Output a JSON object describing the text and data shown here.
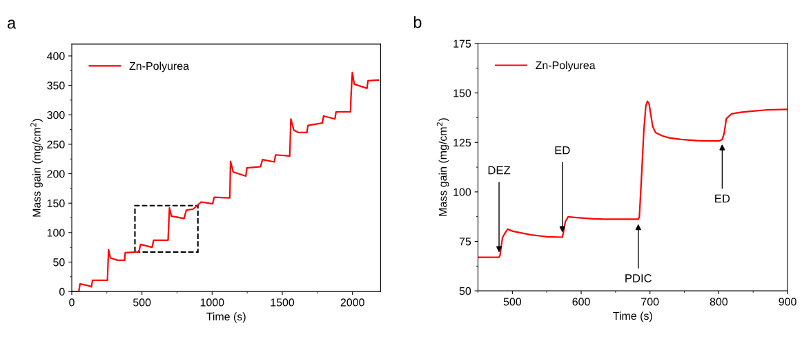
{
  "chart_data": [
    {
      "type": "line",
      "title": "a",
      "xlabel": "Time (s)",
      "ylabel": "Mass gain (mg/cm$^{2}$)",
      "xlim": [
        0,
        2200
      ],
      "xticks": [
        0,
        500,
        1000,
        1500,
        2000
      ],
      "ylim": [
        0,
        420
      ],
      "yticks": [
        0,
        50,
        100,
        150,
        200,
        250,
        300,
        350,
        400
      ],
      "legend": "top left",
      "grid": false,
      "series": [
        {
          "name": "Zn-Polyurea",
          "color": "#ff0000",
          "x": [
            5,
            50,
            59,
            116,
            140,
            148,
            254,
            262,
            275,
            327,
            376,
            381,
            474,
            482,
            490,
            572,
            583,
            686,
            696,
            710,
            800,
            816,
            865,
            922,
            1004,
            1015,
            1126,
            1131,
            1150,
            1240,
            1248,
            1345,
            1359,
            1443,
            1452,
            1553,
            1561,
            1582,
            1614,
            1675,
            1683,
            1785,
            1794,
            1875,
            1883,
            1986,
            1989,
            1999,
            2013,
            2103,
            2111,
            2184
          ],
          "values": [
            0,
            0,
            13,
            10,
            8,
            19,
            19,
            71,
            57,
            53,
            53,
            66,
            67,
            71,
            80,
            75,
            87,
            87,
            142,
            128,
            124,
            138,
            140,
            152,
            149,
            160,
            159,
            221,
            203,
            196,
            210,
            212,
            224,
            220,
            232,
            230,
            293,
            274,
            270,
            270,
            282,
            286,
            298,
            293,
            305,
            305,
            329,
            372,
            352,
            345,
            358,
            359
          ]
        }
      ]
    },
    {
      "type": "line",
      "title": "b",
      "xlabel": "Time (s)",
      "ylabel": "Mass gain (mg/cm$^{2}$)",
      "xlim": [
        450,
        900
      ],
      "xticks": [
        500,
        600,
        700,
        800,
        900
      ],
      "ylim": [
        50,
        175
      ],
      "yticks": [
        50,
        75,
        100,
        125,
        150,
        175
      ],
      "legend": "top left",
      "grid": false,
      "annotations": [
        {
          "text": "DEZ",
          "x": 480.6,
          "y": 67
        },
        {
          "text": "ED",
          "x": 572.6,
          "y": 77.1
        },
        {
          "text": "PDIC",
          "x": 683,
          "y": 86.2
        },
        {
          "text": "ED",
          "x": 805,
          "y": 126.5
        }
      ],
      "series": [
        {
          "name": "Zn-Polyurea",
          "color": "#ff0000",
          "x": [
            450,
            480.6,
            482,
            485.6,
            489,
            493,
            500.7,
            517,
            527,
            541,
            551,
            572.6,
            574,
            577,
            581,
            590.6,
            617.7,
            634,
            683,
            684.6,
            688,
            691,
            694,
            696.3,
            698.7,
            701.3,
            704,
            708,
            718,
            728,
            745,
            768,
            800,
            805,
            807.7,
            811,
            818.4,
            831.8,
            852,
            868.6,
            898.7
          ],
          "values": [
            66.9,
            67,
            68,
            76.9,
            79,
            81.2,
            80.1,
            79,
            78.3,
            77.7,
            77.3,
            77.1,
            79.2,
            85,
            87.4,
            87.1,
            86.4,
            86.2,
            86.2,
            87.4,
            109.6,
            130.6,
            143.5,
            145.8,
            144.6,
            138.8,
            133,
            130,
            128.3,
            127.3,
            126.5,
            125.9,
            125.7,
            126.5,
            129.4,
            137,
            139.4,
            140.2,
            140.9,
            141.4,
            141.7
          ]
        }
      ]
    }
  ]
}
